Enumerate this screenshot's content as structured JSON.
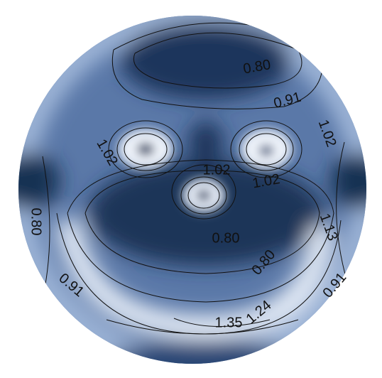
{
  "contour_labels": [
    "0.80",
    "0.91",
    "1.02",
    "1.02",
    "1.02",
    "1.02",
    "0.80",
    "1.13",
    "0.80",
    "0.80",
    "0.91",
    "0.91",
    "1.35",
    "1.24"
  ]
}
